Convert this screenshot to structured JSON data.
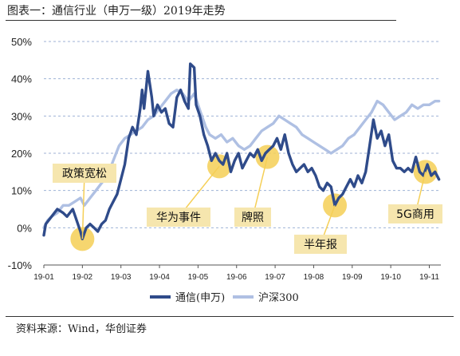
{
  "title": "图表一：通信行业（申万一级）2019年走势",
  "source": "资料来源：Wind，华创证券",
  "colors": {
    "telecom": "#2F4B8A",
    "hs300": "#AFC0E3",
    "highlight": "#F5CF56",
    "label_bg": "#F6E6AE"
  },
  "chart_data": {
    "type": "line",
    "yticks": [
      "-10%",
      "0%",
      "10%",
      "20%",
      "30%",
      "40%",
      "50%"
    ],
    "ylim": [
      -10,
      50
    ],
    "xticks": [
      "19-01",
      "19-02",
      "19-03",
      "19-04",
      "19-05",
      "19-06",
      "19-07",
      "19-08",
      "19-09",
      "19-10",
      "19-11"
    ],
    "xlim": [
      0,
      10.3
    ],
    "grid": "horizontal dashed",
    "legend_position": "bottom",
    "series": [
      {
        "name": "通信(申万)",
        "color": "#2F4B8A",
        "points": [
          [
            0.0,
            -2
          ],
          [
            0.05,
            1
          ],
          [
            0.2,
            3
          ],
          [
            0.35,
            5
          ],
          [
            0.5,
            4
          ],
          [
            0.6,
            3
          ],
          [
            0.75,
            5
          ],
          [
            0.85,
            2
          ],
          [
            0.95,
            -1
          ],
          [
            1.0,
            -3
          ],
          [
            1.1,
            0
          ],
          [
            1.2,
            1
          ],
          [
            1.3,
            0
          ],
          [
            1.4,
            -1
          ],
          [
            1.5,
            1
          ],
          [
            1.6,
            2
          ],
          [
            1.7,
            5
          ],
          [
            1.8,
            7
          ],
          [
            1.9,
            9
          ],
          [
            2.0,
            13
          ],
          [
            2.1,
            17
          ],
          [
            2.2,
            24
          ],
          [
            2.3,
            27
          ],
          [
            2.4,
            25
          ],
          [
            2.5,
            32
          ],
          [
            2.55,
            37
          ],
          [
            2.6,
            32
          ],
          [
            2.7,
            42
          ],
          [
            2.8,
            35
          ],
          [
            2.85,
            30
          ],
          [
            2.95,
            33
          ],
          [
            3.05,
            31
          ],
          [
            3.15,
            32
          ],
          [
            3.25,
            28
          ],
          [
            3.35,
            27
          ],
          [
            3.45,
            35
          ],
          [
            3.55,
            37
          ],
          [
            3.65,
            34
          ],
          [
            3.75,
            32
          ],
          [
            3.8,
            44
          ],
          [
            3.9,
            43
          ],
          [
            3.95,
            33
          ],
          [
            4.05,
            30
          ],
          [
            4.15,
            25
          ],
          [
            4.25,
            22
          ],
          [
            4.35,
            18
          ],
          [
            4.45,
            20
          ],
          [
            4.55,
            18
          ],
          [
            4.65,
            17
          ],
          [
            4.75,
            20
          ],
          [
            4.85,
            15
          ],
          [
            4.95,
            18
          ],
          [
            5.05,
            20
          ],
          [
            5.15,
            16
          ],
          [
            5.25,
            18
          ],
          [
            5.35,
            20
          ],
          [
            5.45,
            19
          ],
          [
            5.55,
            21
          ],
          [
            5.65,
            18
          ],
          [
            5.75,
            20
          ],
          [
            5.85,
            21
          ],
          [
            5.95,
            22
          ],
          [
            6.05,
            24
          ],
          [
            6.15,
            21
          ],
          [
            6.25,
            25
          ],
          [
            6.35,
            20
          ],
          [
            6.45,
            17
          ],
          [
            6.55,
            15
          ],
          [
            6.65,
            16
          ],
          [
            6.75,
            17
          ],
          [
            6.85,
            15
          ],
          [
            6.95,
            16
          ],
          [
            7.05,
            14
          ],
          [
            7.15,
            11
          ],
          [
            7.25,
            10
          ],
          [
            7.35,
            12
          ],
          [
            7.45,
            11
          ],
          [
            7.55,
            6
          ],
          [
            7.65,
            8
          ],
          [
            7.75,
            9
          ],
          [
            7.85,
            11
          ],
          [
            7.95,
            13
          ],
          [
            8.05,
            11
          ],
          [
            8.15,
            14
          ],
          [
            8.25,
            12
          ],
          [
            8.35,
            15
          ],
          [
            8.45,
            22
          ],
          [
            8.55,
            29
          ],
          [
            8.65,
            24
          ],
          [
            8.75,
            26
          ],
          [
            8.85,
            22
          ],
          [
            8.95,
            25
          ],
          [
            9.05,
            18
          ],
          [
            9.15,
            16
          ],
          [
            9.25,
            16
          ],
          [
            9.35,
            15
          ],
          [
            9.45,
            16
          ],
          [
            9.55,
            15
          ],
          [
            9.65,
            19
          ],
          [
            9.75,
            15
          ],
          [
            9.85,
            14
          ],
          [
            9.95,
            17
          ],
          [
            10.05,
            14
          ],
          [
            10.15,
            15
          ],
          [
            10.25,
            13
          ]
        ]
      },
      {
        "name": "沪深300",
        "color": "#AFC0E3",
        "points": [
          [
            0.0,
            0
          ],
          [
            0.1,
            2
          ],
          [
            0.2,
            3
          ],
          [
            0.35,
            4
          ],
          [
            0.5,
            6
          ],
          [
            0.65,
            6
          ],
          [
            0.8,
            7
          ],
          [
            0.95,
            8
          ],
          [
            1.05,
            6
          ],
          [
            1.2,
            8
          ],
          [
            1.35,
            10
          ],
          [
            1.5,
            12
          ],
          [
            1.65,
            14
          ],
          [
            1.8,
            18
          ],
          [
            1.95,
            22
          ],
          [
            2.1,
            24
          ],
          [
            2.25,
            25
          ],
          [
            2.4,
            26
          ],
          [
            2.55,
            27
          ],
          [
            2.7,
            29
          ],
          [
            2.85,
            30
          ],
          [
            3.0,
            32
          ],
          [
            3.15,
            34
          ],
          [
            3.3,
            36
          ],
          [
            3.45,
            37
          ],
          [
            3.6,
            36
          ],
          [
            3.75,
            34
          ],
          [
            3.9,
            36
          ],
          [
            4.0,
            33
          ],
          [
            4.1,
            30
          ],
          [
            4.2,
            27
          ],
          [
            4.3,
            25
          ],
          [
            4.45,
            24
          ],
          [
            4.6,
            25
          ],
          [
            4.75,
            23
          ],
          [
            4.9,
            24
          ],
          [
            5.05,
            22
          ],
          [
            5.2,
            21
          ],
          [
            5.35,
            22
          ],
          [
            5.5,
            24
          ],
          [
            5.65,
            26
          ],
          [
            5.8,
            27
          ],
          [
            5.95,
            28
          ],
          [
            6.1,
            30
          ],
          [
            6.25,
            29
          ],
          [
            6.4,
            28
          ],
          [
            6.55,
            27
          ],
          [
            6.7,
            25
          ],
          [
            6.85,
            24
          ],
          [
            7.0,
            23
          ],
          [
            7.15,
            22
          ],
          [
            7.3,
            21
          ],
          [
            7.45,
            20
          ],
          [
            7.6,
            21
          ],
          [
            7.75,
            22
          ],
          [
            7.9,
            24
          ],
          [
            8.05,
            25
          ],
          [
            8.2,
            27
          ],
          [
            8.35,
            29
          ],
          [
            8.5,
            31
          ],
          [
            8.65,
            34
          ],
          [
            8.8,
            33
          ],
          [
            8.95,
            31
          ],
          [
            9.1,
            29
          ],
          [
            9.25,
            30
          ],
          [
            9.4,
            31
          ],
          [
            9.55,
            33
          ],
          [
            9.7,
            32
          ],
          [
            9.85,
            33
          ],
          [
            10.0,
            33
          ],
          [
            10.15,
            34
          ],
          [
            10.25,
            34
          ]
        ]
      }
    ],
    "annotations": [
      {
        "text": "政策宽松",
        "x": 1.0,
        "y": -3
      },
      {
        "text": "华为事件",
        "x": 4.55,
        "y": 16.5
      },
      {
        "text": "牌照",
        "x": 5.8,
        "y": 19
      },
      {
        "text": "半年报",
        "x": 7.55,
        "y": 6
      },
      {
        "text": "5G商用",
        "x": 9.9,
        "y": 15
      }
    ]
  }
}
